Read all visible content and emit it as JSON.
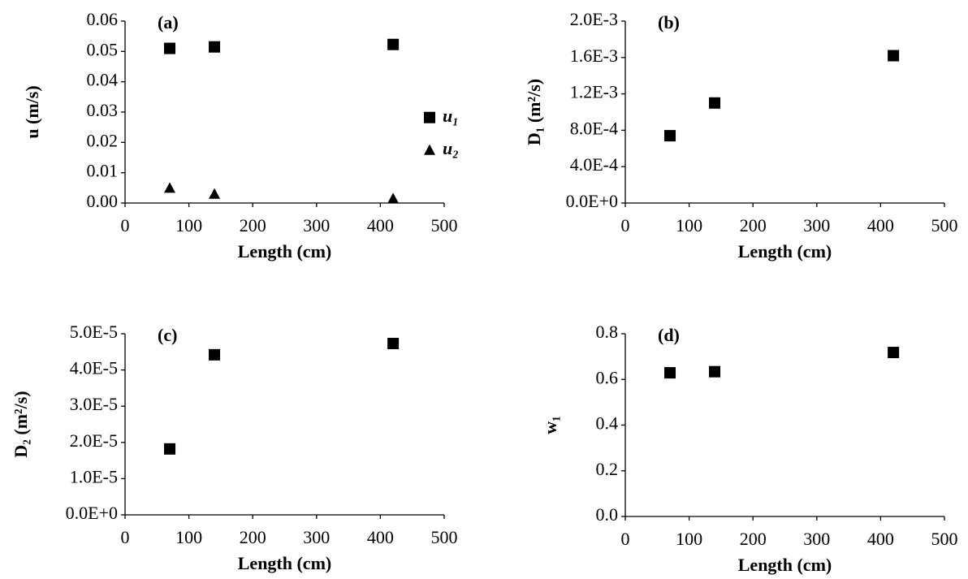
{
  "chart_data": [
    {
      "type": "scatter",
      "title": "(a)",
      "xlabel": "Length (cm)",
      "ylabel": "u (m/s)",
      "x": [
        70,
        140,
        420
      ],
      "xlim": [
        0,
        500
      ],
      "xticks": [
        0,
        100,
        200,
        300,
        400,
        500
      ],
      "ylim": [
        0,
        0.06
      ],
      "yticks": [
        {
          "value": 0,
          "label": "0.00"
        },
        0.01,
        0.02,
        0.03,
        0.04,
        0.05,
        0.06
      ],
      "legend": "right",
      "series": [
        {
          "name": "u₁",
          "color": "#000000",
          "marker": "square",
          "values": [
            0.051,
            0.0515,
            0.0523
          ]
        },
        {
          "name": "u₂",
          "color": "#000000",
          "marker": "triangle",
          "values": [
            0.005,
            0.003,
            0.0015
          ]
        }
      ]
    },
    {
      "type": "scatter",
      "title": "(b)",
      "xlabel": "Length (cm)",
      "ylabel": "D₁ (m²/s)",
      "x": [
        70,
        140,
        420
      ],
      "xlim": [
        0,
        500
      ],
      "xticks": [
        0,
        100,
        200,
        300,
        400,
        500
      ],
      "ylim": [
        0,
        0.002
      ],
      "yticks": [
        {
          "value": 0,
          "label": "0.0E+0"
        },
        {
          "value": 0.0004,
          "label": "4.0E-4"
        },
        {
          "value": 0.0008,
          "label": "8.0E-4"
        },
        {
          "value": 0.0012,
          "label": "1.2E-3"
        },
        {
          "value": 0.0016,
          "label": "1.6E-3"
        },
        {
          "value": 0.002,
          "label": "2.0E-3"
        }
      ],
      "series": [
        {
          "color": "#000000",
          "marker": "square",
          "values": [
            0.00074,
            0.0011,
            0.00162
          ]
        }
      ]
    },
    {
      "type": "scatter",
      "title": "(c)",
      "xlabel": "Length  (cm)",
      "ylabel": "D₂ (m²/s)",
      "x": [
        70,
        140,
        420
      ],
      "xlim": [
        0,
        500
      ],
      "xticks": [
        0,
        100,
        200,
        300,
        400,
        500
      ],
      "ylim": [
        0,
        5e-05
      ],
      "yticks": [
        {
          "value": 0,
          "label": "0.0E+0"
        },
        {
          "value": 1e-05,
          "label": "1.0E-5"
        },
        {
          "value": 2e-05,
          "label": "2.0E-5"
        },
        {
          "value": 3e-05,
          "label": "3.0E-5"
        },
        {
          "value": 4e-05,
          "label": "4.0E-5"
        },
        {
          "value": 5e-05,
          "label": "5.0E-5"
        }
      ],
      "series": [
        {
          "color": "#000000",
          "marker": "square",
          "values": [
            1.82e-05,
            4.42e-05,
            4.73e-05
          ]
        }
      ]
    },
    {
      "type": "scatter",
      "title": "(d)",
      "xlabel": "Length  (cm)",
      "ylabel": "w₁",
      "x": [
        70,
        140,
        420
      ],
      "xlim": [
        0,
        500
      ],
      "xticks": [
        0,
        100,
        200,
        300,
        400,
        500
      ],
      "ylim": [
        0,
        0.8
      ],
      "yticks": [
        {
          "value": 0,
          "label": "0.0"
        },
        0.2,
        0.4,
        0.6,
        0.8
      ],
      "series": [
        {
          "color": "#000000",
          "marker": "square",
          "values": [
            0.629,
            0.634,
            0.718
          ]
        }
      ]
    }
  ]
}
